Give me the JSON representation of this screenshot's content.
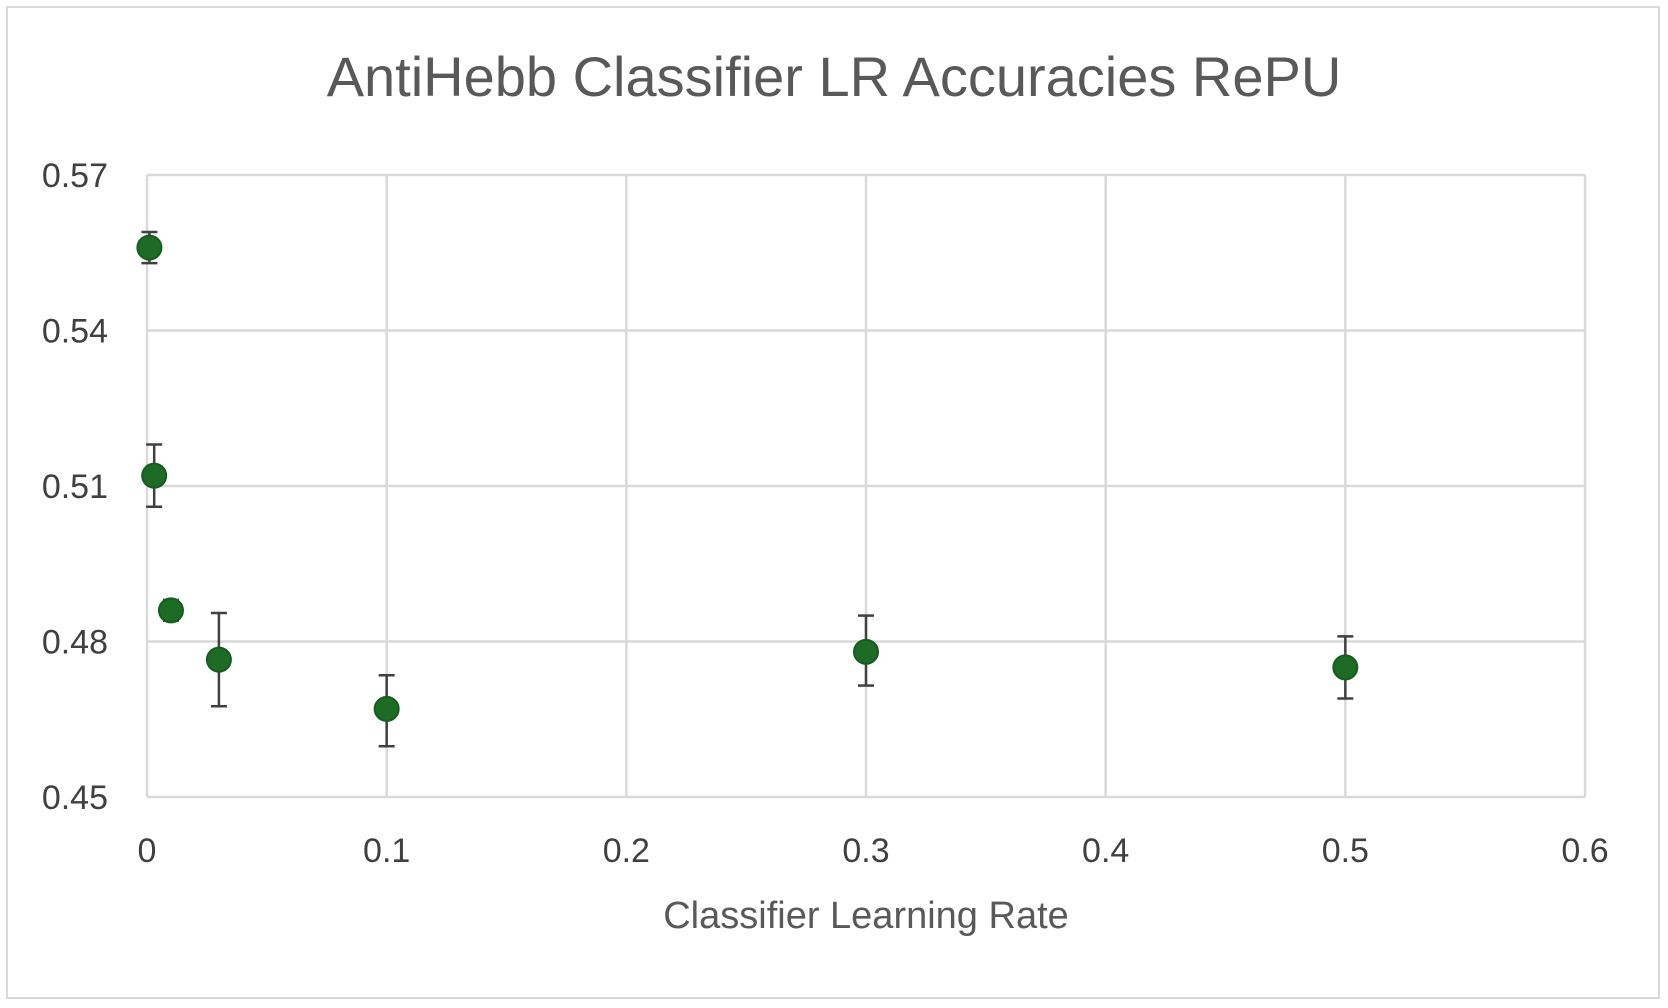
{
  "chart_data": {
    "type": "scatter",
    "title": "AntiHebb Classifier LR Accuracies RePU",
    "xlabel": "Classifier Learning Rate",
    "ylabel": "",
    "xlim": [
      0,
      0.6
    ],
    "ylim": [
      0.45,
      0.57
    ],
    "xticks": [
      "0",
      "0.1",
      "0.2",
      "0.3",
      "0.4",
      "0.5",
      "0.6"
    ],
    "yticks": [
      "0.57",
      "0.54",
      "0.51",
      "0.48",
      "0.45"
    ],
    "grid": true,
    "legend": "none",
    "marker_color": "#1e6b26",
    "error_bar_color": "#404040",
    "series": [
      {
        "points": [
          {
            "x": 0.001,
            "y": 0.556,
            "err_low": 0.553,
            "err_high": 0.559
          },
          {
            "x": 0.003,
            "y": 0.512,
            "err_low": 0.506,
            "err_high": 0.518
          },
          {
            "x": 0.01,
            "y": 0.486,
            "err_low": 0.484,
            "err_high": 0.488
          },
          {
            "x": 0.03,
            "y": 0.4765,
            "err_low": 0.4675,
            "err_high": 0.4855
          },
          {
            "x": 0.1,
            "y": 0.467,
            "err_low": 0.4598,
            "err_high": 0.4735
          },
          {
            "x": 0.3,
            "y": 0.478,
            "err_low": 0.4715,
            "err_high": 0.485
          },
          {
            "x": 0.5,
            "y": 0.475,
            "err_low": 0.469,
            "err_high": 0.481
          }
        ]
      }
    ]
  }
}
